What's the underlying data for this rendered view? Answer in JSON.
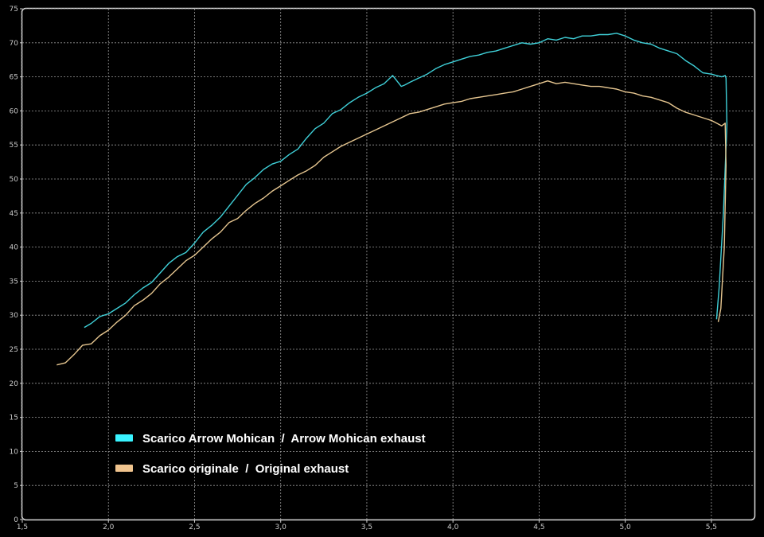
{
  "chart_data": {
    "type": "line",
    "title": "",
    "xlabel": "",
    "ylabel": "",
    "xlim": [
      1.5,
      5.75
    ],
    "ylim": [
      0,
      75
    ],
    "x_ticks": [
      "1,5",
      "2,0",
      "2,5",
      "3,0",
      "3,5",
      "4,0",
      "4,5",
      "5,0",
      "5,5"
    ],
    "y_ticks": [
      "0",
      "5",
      "10",
      "15",
      "20",
      "25",
      "30",
      "35",
      "40",
      "45",
      "50",
      "55",
      "60",
      "65",
      "70",
      "75"
    ],
    "grid": true,
    "legend_position": "lower-left",
    "series": [
      {
        "name": "Scarico Arrow Mohican  /  Arrow Mohican exhaust",
        "color": "#3fd0d8",
        "swatch_color": "#39f3ff",
        "x": [
          1.86,
          1.9,
          1.95,
          2.0,
          2.05,
          2.1,
          2.15,
          2.2,
          2.25,
          2.3,
          2.35,
          2.4,
          2.45,
          2.5,
          2.55,
          2.6,
          2.65,
          2.7,
          2.75,
          2.8,
          2.85,
          2.9,
          2.95,
          3.0,
          3.05,
          3.1,
          3.15,
          3.2,
          3.25,
          3.3,
          3.35,
          3.4,
          3.45,
          3.5,
          3.55,
          3.6,
          3.65,
          3.7,
          3.72,
          3.75,
          3.8,
          3.85,
          3.9,
          3.95,
          4.0,
          4.05,
          4.1,
          4.15,
          4.2,
          4.25,
          4.3,
          4.35,
          4.4,
          4.45,
          4.5,
          4.55,
          4.6,
          4.65,
          4.7,
          4.75,
          4.8,
          4.85,
          4.9,
          4.95,
          5.0,
          5.05,
          5.1,
          5.15,
          5.2,
          5.25,
          5.3,
          5.35,
          5.4,
          5.45,
          5.5,
          5.53,
          5.56,
          5.58,
          5.585,
          5.59,
          5.57,
          5.545,
          5.53
        ],
        "y": [
          28.2,
          28.8,
          29.8,
          30.2,
          31.0,
          31.8,
          33.0,
          34.0,
          34.8,
          36.2,
          37.6,
          38.6,
          39.2,
          40.6,
          42.2,
          43.2,
          44.4,
          46.0,
          47.6,
          49.2,
          50.2,
          51.4,
          52.2,
          52.6,
          53.6,
          54.4,
          56.0,
          57.4,
          58.2,
          59.6,
          60.2,
          61.2,
          62.0,
          62.6,
          63.4,
          64.0,
          65.2,
          63.6,
          63.8,
          64.2,
          64.8,
          65.4,
          66.2,
          66.8,
          67.2,
          67.6,
          68.0,
          68.2,
          68.6,
          68.8,
          69.2,
          69.6,
          70.0,
          69.8,
          70.0,
          70.6,
          70.4,
          70.8,
          70.6,
          71.0,
          71.0,
          71.2,
          71.2,
          71.4,
          71.0,
          70.4,
          70.0,
          69.8,
          69.2,
          68.8,
          68.4,
          67.4,
          66.6,
          65.6,
          65.4,
          65.2,
          65.0,
          65.2,
          64.8,
          58.0,
          45.0,
          34.0,
          29.4
        ]
      },
      {
        "name": "Scarico originale  /  Original exhaust",
        "color": "#e6c690",
        "swatch_color": "#f0c48e",
        "x": [
          1.7,
          1.75,
          1.8,
          1.85,
          1.9,
          1.95,
          2.0,
          2.05,
          2.1,
          2.15,
          2.2,
          2.25,
          2.3,
          2.35,
          2.4,
          2.45,
          2.5,
          2.55,
          2.6,
          2.65,
          2.7,
          2.75,
          2.8,
          2.85,
          2.9,
          2.95,
          3.0,
          3.05,
          3.1,
          3.15,
          3.2,
          3.25,
          3.3,
          3.35,
          3.4,
          3.45,
          3.5,
          3.55,
          3.6,
          3.65,
          3.7,
          3.75,
          3.8,
          3.85,
          3.9,
          3.95,
          4.0,
          4.05,
          4.1,
          4.15,
          4.2,
          4.25,
          4.3,
          4.35,
          4.4,
          4.45,
          4.5,
          4.55,
          4.6,
          4.65,
          4.7,
          4.75,
          4.8,
          4.85,
          4.9,
          4.95,
          5.0,
          5.05,
          5.1,
          5.15,
          5.2,
          5.25,
          5.3,
          5.35,
          5.4,
          5.45,
          5.5,
          5.53,
          5.56,
          5.58,
          5.585,
          5.575,
          5.555,
          5.54
        ],
        "y": [
          22.7,
          23.0,
          24.2,
          25.6,
          25.8,
          27.0,
          27.8,
          29.0,
          30.0,
          31.4,
          32.2,
          33.2,
          34.6,
          35.6,
          36.8,
          38.0,
          38.8,
          40.0,
          41.2,
          42.2,
          43.6,
          44.2,
          45.4,
          46.4,
          47.2,
          48.2,
          49.0,
          49.8,
          50.6,
          51.2,
          52.0,
          53.2,
          54.0,
          54.8,
          55.4,
          56.0,
          56.6,
          57.2,
          57.8,
          58.4,
          59.0,
          59.6,
          59.8,
          60.2,
          60.6,
          61.0,
          61.2,
          61.4,
          61.8,
          62.0,
          62.2,
          62.4,
          62.6,
          62.8,
          63.2,
          63.6,
          64.0,
          64.4,
          64.0,
          64.2,
          64.0,
          63.8,
          63.6,
          63.6,
          63.4,
          63.2,
          62.8,
          62.6,
          62.2,
          62.0,
          61.6,
          61.2,
          60.4,
          59.8,
          59.4,
          59.0,
          58.6,
          58.2,
          57.8,
          58.2,
          52.0,
          40.0,
          31.0,
          29.0
        ]
      }
    ]
  }
}
